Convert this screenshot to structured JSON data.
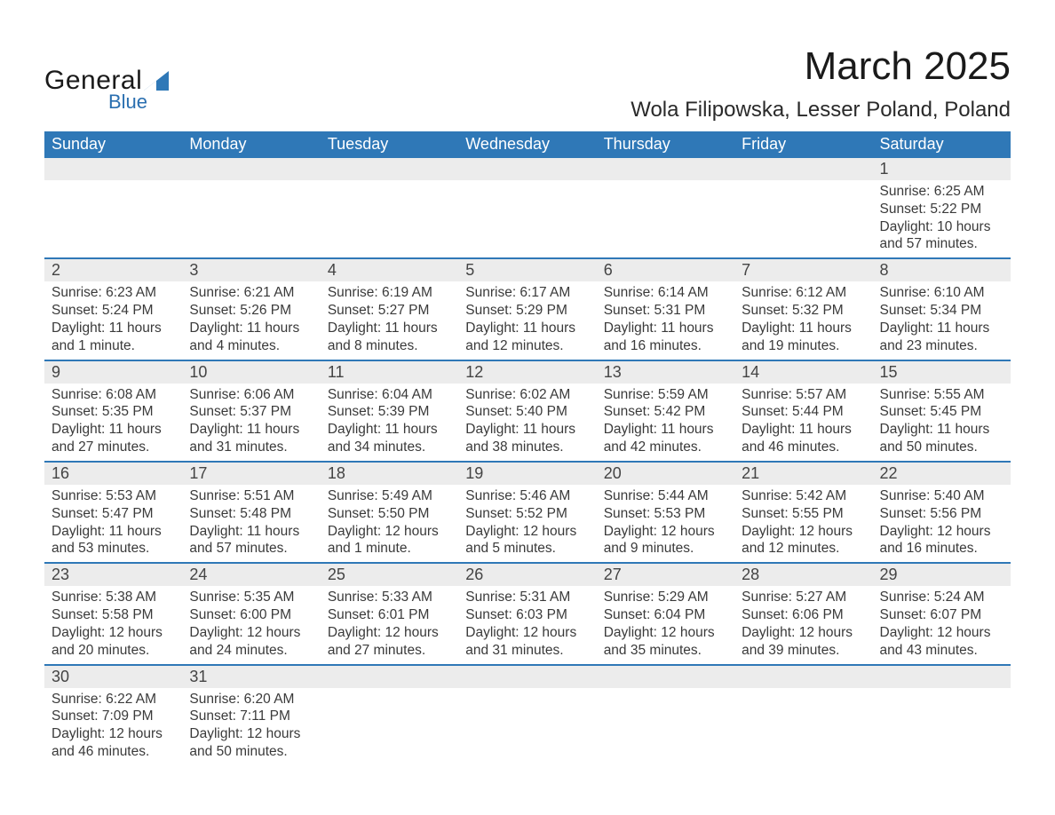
{
  "brand": {
    "general": "General",
    "blue": "Blue",
    "triangle_color": "#2f78b7"
  },
  "title": "March 2025",
  "location": "Wola Filipowska, Lesser Poland, Poland",
  "colors": {
    "header_bg": "#2f78b7",
    "header_text": "#ffffff",
    "daynum_bg": "#ececec",
    "week_divider": "#2f78b7",
    "body_text": "#3a3a3a"
  },
  "fonts": {
    "title_size_pt": 33,
    "location_size_pt": 18,
    "dow_size_pt": 14,
    "daynum_size_pt": 14,
    "body_size_pt": 12
  },
  "day_of_week": [
    "Sunday",
    "Monday",
    "Tuesday",
    "Wednesday",
    "Thursday",
    "Friday",
    "Saturday"
  ],
  "weeks": [
    [
      {
        "n": "",
        "sr": "",
        "ss": "",
        "dl": ""
      },
      {
        "n": "",
        "sr": "",
        "ss": "",
        "dl": ""
      },
      {
        "n": "",
        "sr": "",
        "ss": "",
        "dl": ""
      },
      {
        "n": "",
        "sr": "",
        "ss": "",
        "dl": ""
      },
      {
        "n": "",
        "sr": "",
        "ss": "",
        "dl": ""
      },
      {
        "n": "",
        "sr": "",
        "ss": "",
        "dl": ""
      },
      {
        "n": "1",
        "sr": "Sunrise: 6:25 AM",
        "ss": "Sunset: 5:22 PM",
        "dl": "Daylight: 10 hours and 57 minutes."
      }
    ],
    [
      {
        "n": "2",
        "sr": "Sunrise: 6:23 AM",
        "ss": "Sunset: 5:24 PM",
        "dl": "Daylight: 11 hours and 1 minute."
      },
      {
        "n": "3",
        "sr": "Sunrise: 6:21 AM",
        "ss": "Sunset: 5:26 PM",
        "dl": "Daylight: 11 hours and 4 minutes."
      },
      {
        "n": "4",
        "sr": "Sunrise: 6:19 AM",
        "ss": "Sunset: 5:27 PM",
        "dl": "Daylight: 11 hours and 8 minutes."
      },
      {
        "n": "5",
        "sr": "Sunrise: 6:17 AM",
        "ss": "Sunset: 5:29 PM",
        "dl": "Daylight: 11 hours and 12 minutes."
      },
      {
        "n": "6",
        "sr": "Sunrise: 6:14 AM",
        "ss": "Sunset: 5:31 PM",
        "dl": "Daylight: 11 hours and 16 minutes."
      },
      {
        "n": "7",
        "sr": "Sunrise: 6:12 AM",
        "ss": "Sunset: 5:32 PM",
        "dl": "Daylight: 11 hours and 19 minutes."
      },
      {
        "n": "8",
        "sr": "Sunrise: 6:10 AM",
        "ss": "Sunset: 5:34 PM",
        "dl": "Daylight: 11 hours and 23 minutes."
      }
    ],
    [
      {
        "n": "9",
        "sr": "Sunrise: 6:08 AM",
        "ss": "Sunset: 5:35 PM",
        "dl": "Daylight: 11 hours and 27 minutes."
      },
      {
        "n": "10",
        "sr": "Sunrise: 6:06 AM",
        "ss": "Sunset: 5:37 PM",
        "dl": "Daylight: 11 hours and 31 minutes."
      },
      {
        "n": "11",
        "sr": "Sunrise: 6:04 AM",
        "ss": "Sunset: 5:39 PM",
        "dl": "Daylight: 11 hours and 34 minutes."
      },
      {
        "n": "12",
        "sr": "Sunrise: 6:02 AM",
        "ss": "Sunset: 5:40 PM",
        "dl": "Daylight: 11 hours and 38 minutes."
      },
      {
        "n": "13",
        "sr": "Sunrise: 5:59 AM",
        "ss": "Sunset: 5:42 PM",
        "dl": "Daylight: 11 hours and 42 minutes."
      },
      {
        "n": "14",
        "sr": "Sunrise: 5:57 AM",
        "ss": "Sunset: 5:44 PM",
        "dl": "Daylight: 11 hours and 46 minutes."
      },
      {
        "n": "15",
        "sr": "Sunrise: 5:55 AM",
        "ss": "Sunset: 5:45 PM",
        "dl": "Daylight: 11 hours and 50 minutes."
      }
    ],
    [
      {
        "n": "16",
        "sr": "Sunrise: 5:53 AM",
        "ss": "Sunset: 5:47 PM",
        "dl": "Daylight: 11 hours and 53 minutes."
      },
      {
        "n": "17",
        "sr": "Sunrise: 5:51 AM",
        "ss": "Sunset: 5:48 PM",
        "dl": "Daylight: 11 hours and 57 minutes."
      },
      {
        "n": "18",
        "sr": "Sunrise: 5:49 AM",
        "ss": "Sunset: 5:50 PM",
        "dl": "Daylight: 12 hours and 1 minute."
      },
      {
        "n": "19",
        "sr": "Sunrise: 5:46 AM",
        "ss": "Sunset: 5:52 PM",
        "dl": "Daylight: 12 hours and 5 minutes."
      },
      {
        "n": "20",
        "sr": "Sunrise: 5:44 AM",
        "ss": "Sunset: 5:53 PM",
        "dl": "Daylight: 12 hours and 9 minutes."
      },
      {
        "n": "21",
        "sr": "Sunrise: 5:42 AM",
        "ss": "Sunset: 5:55 PM",
        "dl": "Daylight: 12 hours and 12 minutes."
      },
      {
        "n": "22",
        "sr": "Sunrise: 5:40 AM",
        "ss": "Sunset: 5:56 PM",
        "dl": "Daylight: 12 hours and 16 minutes."
      }
    ],
    [
      {
        "n": "23",
        "sr": "Sunrise: 5:38 AM",
        "ss": "Sunset: 5:58 PM",
        "dl": "Daylight: 12 hours and 20 minutes."
      },
      {
        "n": "24",
        "sr": "Sunrise: 5:35 AM",
        "ss": "Sunset: 6:00 PM",
        "dl": "Daylight: 12 hours and 24 minutes."
      },
      {
        "n": "25",
        "sr": "Sunrise: 5:33 AM",
        "ss": "Sunset: 6:01 PM",
        "dl": "Daylight: 12 hours and 27 minutes."
      },
      {
        "n": "26",
        "sr": "Sunrise: 5:31 AM",
        "ss": "Sunset: 6:03 PM",
        "dl": "Daylight: 12 hours and 31 minutes."
      },
      {
        "n": "27",
        "sr": "Sunrise: 5:29 AM",
        "ss": "Sunset: 6:04 PM",
        "dl": "Daylight: 12 hours and 35 minutes."
      },
      {
        "n": "28",
        "sr": "Sunrise: 5:27 AM",
        "ss": "Sunset: 6:06 PM",
        "dl": "Daylight: 12 hours and 39 minutes."
      },
      {
        "n": "29",
        "sr": "Sunrise: 5:24 AM",
        "ss": "Sunset: 6:07 PM",
        "dl": "Daylight: 12 hours and 43 minutes."
      }
    ],
    [
      {
        "n": "30",
        "sr": "Sunrise: 6:22 AM",
        "ss": "Sunset: 7:09 PM",
        "dl": "Daylight: 12 hours and 46 minutes."
      },
      {
        "n": "31",
        "sr": "Sunrise: 6:20 AM",
        "ss": "Sunset: 7:11 PM",
        "dl": "Daylight: 12 hours and 50 minutes."
      },
      {
        "n": "",
        "sr": "",
        "ss": "",
        "dl": ""
      },
      {
        "n": "",
        "sr": "",
        "ss": "",
        "dl": ""
      },
      {
        "n": "",
        "sr": "",
        "ss": "",
        "dl": ""
      },
      {
        "n": "",
        "sr": "",
        "ss": "",
        "dl": ""
      },
      {
        "n": "",
        "sr": "",
        "ss": "",
        "dl": ""
      }
    ]
  ]
}
